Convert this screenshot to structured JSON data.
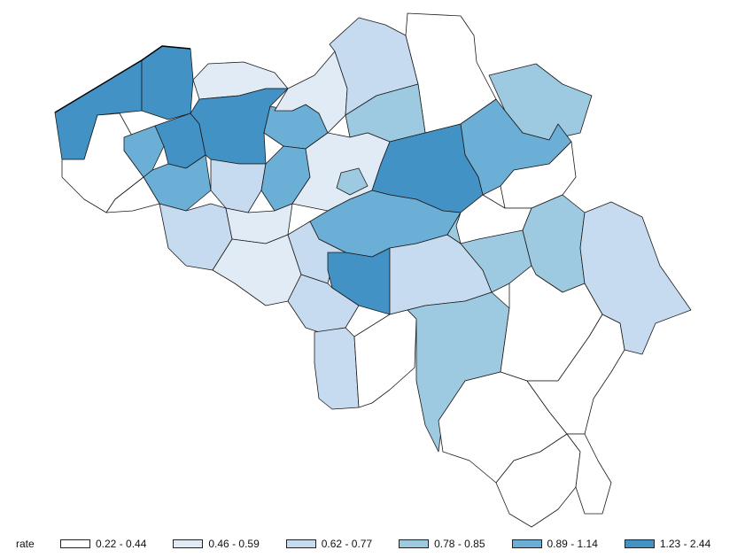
{
  "legend": {
    "title": "rate",
    "classes": [
      {
        "label": "0.22 - 0.44",
        "color": "#ffffff"
      },
      {
        "label": "0.46 - 0.59",
        "color": "#e0ebf6"
      },
      {
        "label": "0.62 - 0.77",
        "color": "#c6dbef"
      },
      {
        "label": "0.78 - 0.85",
        "color": "#9ecae1"
      },
      {
        "label": "0.89 - 1.14",
        "color": "#6baed6"
      },
      {
        "label": "1.23 - 2.44",
        "color": "#4292c6"
      }
    ]
  },
  "map": {
    "subject": "Belgium districts choropleth",
    "variable": "rate"
  }
}
